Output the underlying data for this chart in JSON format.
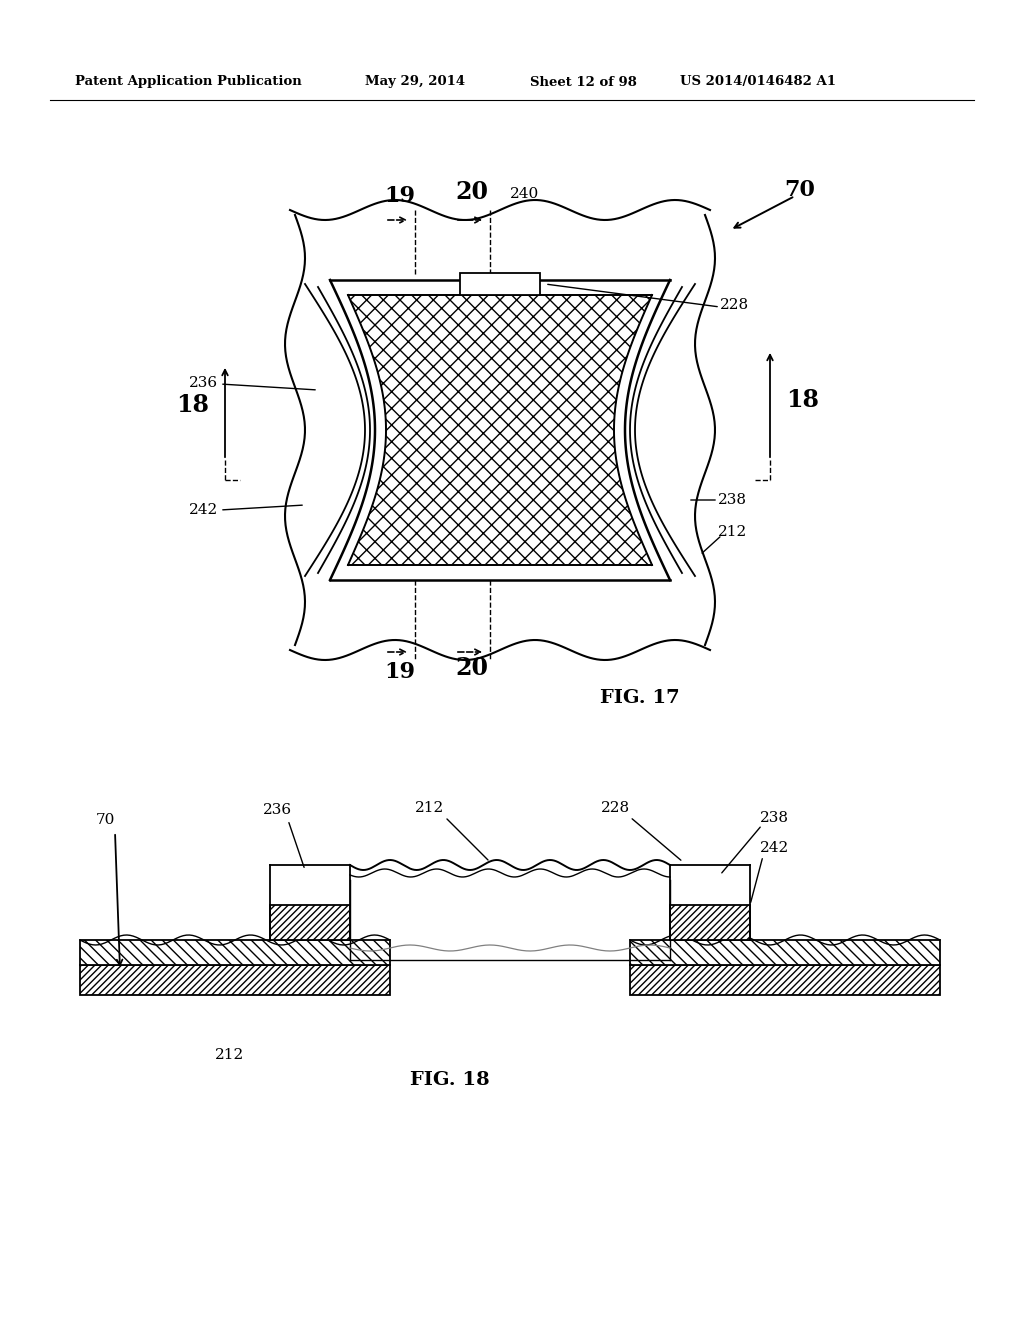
{
  "background_color": "#ffffff",
  "header_text": "Patent Application Publication",
  "header_date": "May 29, 2014",
  "header_sheet": "Sheet 12 of 98",
  "header_patent": "US 2014/0146482 A1",
  "fig17_label": "FIG. 17",
  "fig18_label": "FIG. 18"
}
